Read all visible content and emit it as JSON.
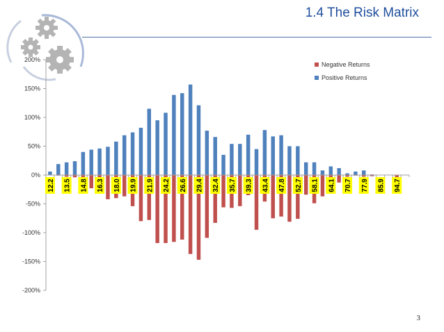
{
  "slide": {
    "title": "1.4  The Risk Matrix",
    "page_number": "3"
  },
  "icons": [
    "gear-cluster-icon"
  ],
  "chart_data": {
    "type": "bar",
    "title": "",
    "xlabel": "",
    "ylabel": "",
    "ylim": [
      -2.0,
      2.0
    ],
    "y_ticks": [
      -2.0,
      -1.5,
      -1.0,
      -0.5,
      0,
      0.5,
      1.0,
      1.5,
      2.0
    ],
    "y_tick_labels": [
      "-200%",
      "-150%",
      "-100%",
      "-50%",
      "0%",
      "50%",
      "100%",
      "150%",
      "200%"
    ],
    "x_tick_labels": [
      "12.2",
      "13.5",
      "14.8",
      "16.3",
      "18.0",
      "19.9",
      "21.9",
      "24.2",
      "26.6",
      "29.4",
      "32.4",
      "35.7",
      "39.3",
      "43.4",
      "47.8",
      "52.7",
      "58.1",
      "64.1",
      "70.7",
      "77.9",
      "85.9",
      "94.7"
    ],
    "x_tick_label_bg": "#ffff00",
    "grid": false,
    "legend_position": "top-right",
    "bar_count": 44,
    "series": [
      {
        "name": "Negative Returns",
        "color": "#c0504d",
        "values": [
          0,
          -0.01,
          -0.03,
          -0.04,
          -0.05,
          -0.23,
          -0.31,
          -0.42,
          -0.4,
          -0.37,
          -0.54,
          -0.8,
          -0.78,
          -1.18,
          -1.18,
          -1.16,
          -1.12,
          -1.37,
          -1.47,
          -1.09,
          -0.83,
          -0.56,
          -0.57,
          -0.54,
          -0.35,
          -0.95,
          -0.46,
          -0.75,
          -0.72,
          -0.81,
          -0.76,
          -0.34,
          -0.49,
          -0.37,
          -0.05,
          -0.13,
          -0.03,
          -0.01,
          -0.03,
          -0.02,
          0,
          0,
          -0.06,
          0
        ]
      },
      {
        "name": "Positive Returns",
        "color": "#4f81bd",
        "values": [
          0.06,
          0.19,
          0.22,
          0.24,
          0.4,
          0.44,
          0.46,
          0.49,
          0.58,
          0.69,
          0.74,
          0.82,
          1.15,
          0.95,
          1.08,
          1.39,
          1.42,
          1.57,
          1.21,
          0.77,
          0.66,
          0.35,
          0.54,
          0.54,
          0.7,
          0.45,
          0.78,
          0.67,
          0.69,
          0.5,
          0.5,
          0.22,
          0.22,
          0.08,
          0.15,
          0.12,
          0.03,
          0.06,
          0.08,
          0.01,
          0,
          0,
          0,
          0
        ]
      }
    ]
  }
}
